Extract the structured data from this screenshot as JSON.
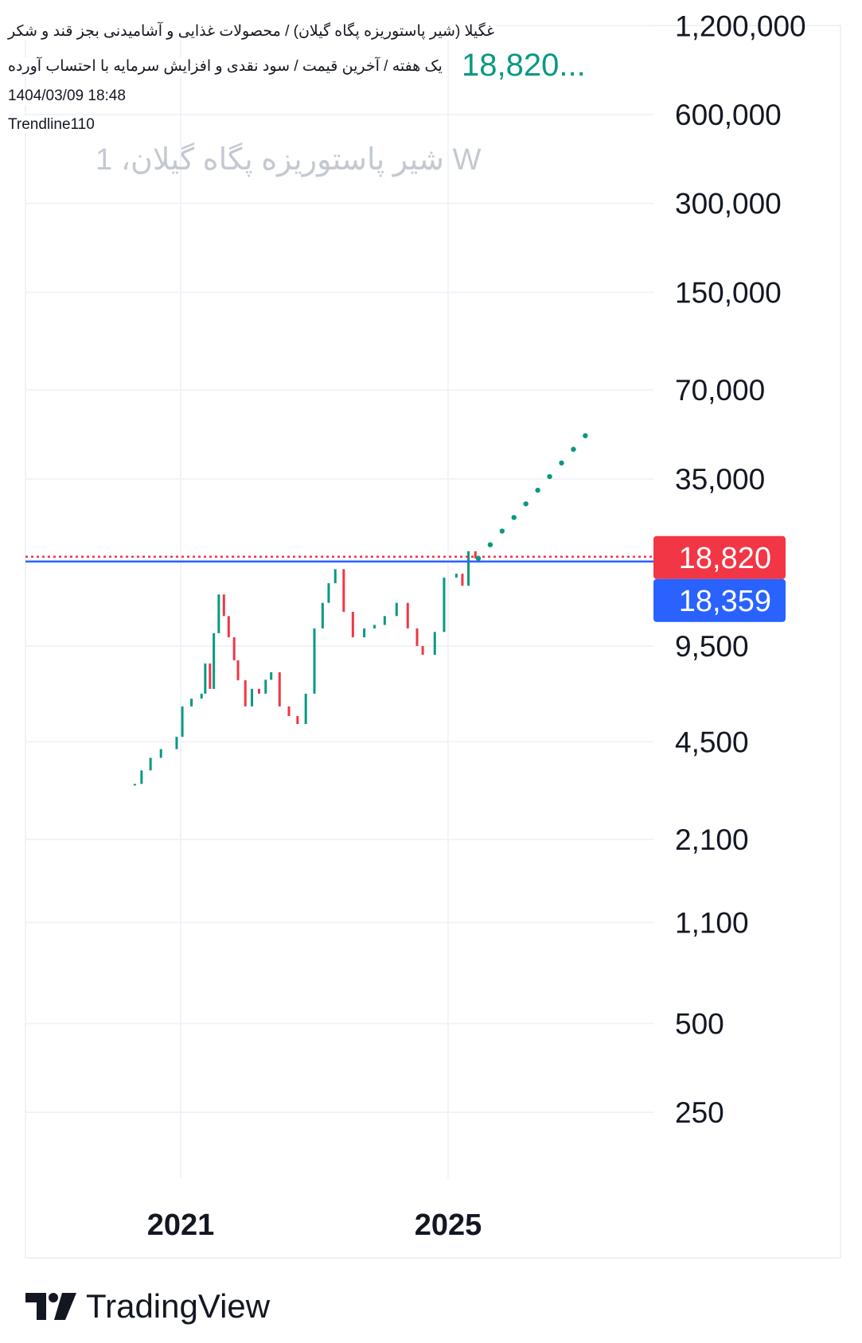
{
  "header": {
    "title": "غگیلا (شیر پاستوریزه پگاه گیلان) / محصولات غذایی و آشامیدنی بجز قند و شکر",
    "subtitle": "یک هفته / آخرین قیمت / سود نقدی و افزایش سرمایه با احتساب آورده",
    "watermark": "W شیر پاستوریزه پگاه گیلان، 1",
    "last_price": "18,820...",
    "datetime": "1404/03/09 18:48",
    "author": "Trendline110"
  },
  "brand": {
    "name": "TradingView"
  },
  "colors": {
    "up": "#089981",
    "down": "#F23645",
    "blue": "#2962FF",
    "grid": "#F0F3FA",
    "trend": "#089981"
  },
  "chart_data": {
    "type": "candlestick",
    "scale": "log",
    "grid": true,
    "ylim": [
      250,
      1200000
    ],
    "y_ticks": [
      {
        "v": 1200000,
        "label": "1,200,000"
      },
      {
        "v": 600000,
        "label": "600,000"
      },
      {
        "v": 300000,
        "label": "300,000"
      },
      {
        "v": 150000,
        "label": "150,000"
      },
      {
        "v": 70000,
        "label": "70,000"
      },
      {
        "v": 35000,
        "label": "35,000"
      },
      {
        "v": 9500,
        "label": "9,500"
      },
      {
        "v": 4500,
        "label": "4,500"
      },
      {
        "v": 2100,
        "label": "2,100"
      },
      {
        "v": 1100,
        "label": "1,100"
      },
      {
        "v": 500,
        "label": "500"
      },
      {
        "v": 250,
        "label": "250"
      }
    ],
    "x_ticks": [
      {
        "year": 2021,
        "label": "2021"
      },
      {
        "year": 2025,
        "label": "2025"
      }
    ],
    "xlim": [
      "2019-12-01",
      "2028-04-01"
    ],
    "price_labels": [
      {
        "value": 18820,
        "label": "18,820",
        "color": "#F23645",
        "line": "dotted"
      },
      {
        "value": 18359,
        "label": "18,359",
        "color": "#2962FF",
        "line": "solid"
      }
    ],
    "closes": [
      [
        "2020-04-25",
        3240
      ],
      [
        "2020-06-01",
        3600
      ],
      [
        "2020-07-20",
        3970
      ],
      [
        "2020-09-15",
        4250
      ],
      [
        "2020-12-10",
        4680
      ],
      [
        "2021-01-10",
        5930
      ],
      [
        "2021-03-01",
        6300
      ],
      [
        "2021-04-25",
        6550
      ],
      [
        "2021-05-15",
        8290
      ],
      [
        "2021-06-10",
        6800
      ],
      [
        "2021-07-01",
        10500
      ],
      [
        "2021-07-28",
        14200
      ],
      [
        "2021-08-25",
        12000
      ],
      [
        "2021-09-20",
        10170
      ],
      [
        "2021-10-20",
        8500
      ],
      [
        "2021-11-10",
        7270
      ],
      [
        "2021-12-20",
        5930
      ],
      [
        "2022-01-25",
        6800
      ],
      [
        "2022-03-05",
        6550
      ],
      [
        "2022-04-10",
        7300
      ],
      [
        "2022-05-10",
        7740
      ],
      [
        "2022-06-25",
        5930
      ],
      [
        "2022-08-15",
        5500
      ],
      [
        "2022-10-01",
        5170
      ],
      [
        "2022-11-15",
        6550
      ],
      [
        "2023-01-01",
        10900
      ],
      [
        "2023-02-15",
        13300
      ],
      [
        "2023-03-20",
        15500
      ],
      [
        "2023-04-25",
        17300
      ],
      [
        "2023-06-10",
        12400
      ],
      [
        "2023-07-30",
        10170
      ],
      [
        "2023-09-30",
        10900
      ],
      [
        "2023-11-25",
        11200
      ],
      [
        "2024-01-20",
        12000
      ],
      [
        "2024-03-25",
        13300
      ],
      [
        "2024-05-25",
        10900
      ],
      [
        "2024-07-15",
        9500
      ],
      [
        "2024-08-15",
        8870
      ],
      [
        "2024-10-20",
        10600
      ],
      [
        "2024-12-10",
        16200
      ],
      [
        "2025-02-15",
        16700
      ],
      [
        "2025-03-20",
        15200
      ],
      [
        "2025-04-22",
        19900
      ],
      [
        "2025-05-30",
        18820
      ]
    ],
    "trendline": {
      "from": [
        "2025-06-15",
        18820
      ],
      "to": [
        "2027-01-20",
        49000
      ],
      "style": "dotted",
      "color": "#089981"
    }
  }
}
